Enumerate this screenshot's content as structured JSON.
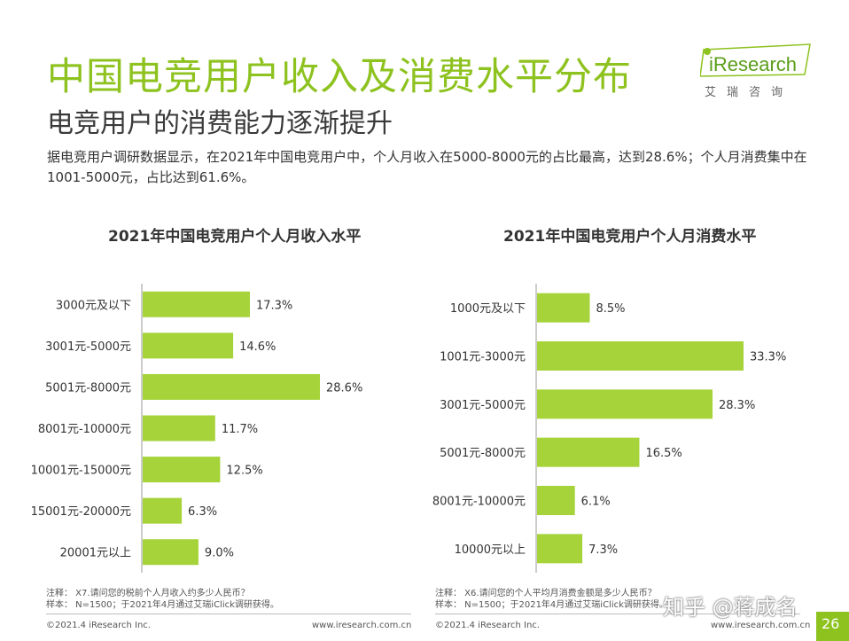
{
  "header": {
    "title": "中国电竞用户收入及消费水平分布",
    "subtitle": "电竞用户的消费能力逐渐提升",
    "description": "据电竞用户调研数据显示，在2021年中国电竞用户中，个人月收入在5000-8000元的占比最高，达到28.6%；个人月消费集中在1001-5000元，占比达到61.6%。"
  },
  "logo": {
    "text": "iResearch",
    "cn": "艾瑞咨询"
  },
  "colors": {
    "accent": "#8dc21f",
    "bar": "#a6d33a"
  },
  "chart_data": [
    {
      "type": "bar",
      "orientation": "horizontal",
      "title": "2021年中国电竞用户个人月收入水平",
      "categories": [
        "3000元及以下",
        "3001元-5000元",
        "5001元-8000元",
        "8001元-10000元",
        "10001元-15000元",
        "15001元-20000元",
        "20001元以上"
      ],
      "values": [
        17.3,
        14.6,
        28.6,
        11.7,
        12.5,
        6.3,
        9.0
      ],
      "labels": [
        "17.3%",
        "14.6%",
        "28.6%",
        "11.7%",
        "12.5%",
        "6.3%",
        "9.0%"
      ],
      "xlim": [
        0,
        33.3
      ]
    },
    {
      "type": "bar",
      "orientation": "horizontal",
      "title": "2021年中国电竞用户个人月消费水平",
      "categories": [
        "1000元及以下",
        "1001元-3000元",
        "3001元-5000元",
        "5001元-8000元",
        "8001元-10000元",
        "10000元以上"
      ],
      "values": [
        8.5,
        33.3,
        28.3,
        16.5,
        6.1,
        7.3
      ],
      "labels": [
        "8.5%",
        "33.3%",
        "28.3%",
        "16.5%",
        "6.1%",
        "7.3%"
      ],
      "xlim": [
        0,
        33.3
      ]
    }
  ],
  "footer": {
    "left": {
      "note": "注释： X7.请问您的税前个人月收入约多少人民币？",
      "sample": "样本： N=1500；于2021年4月通过艾瑞iClick调研获得。",
      "copyright": "©2021.4 iResearch Inc.",
      "url": "www.iresearch.com.cn"
    },
    "right": {
      "note": "注释： X6.请问您的个人平均月消费金额是多少人民币？",
      "sample": "样本： N=1500；于2021年4月通过艾瑞iClick调研获得。",
      "copyright": "©2021.4 iResearch Inc.",
      "url": "www.iresearch.com.cn"
    }
  },
  "watermark": "知乎 @蒋成名",
  "page_number": "26"
}
